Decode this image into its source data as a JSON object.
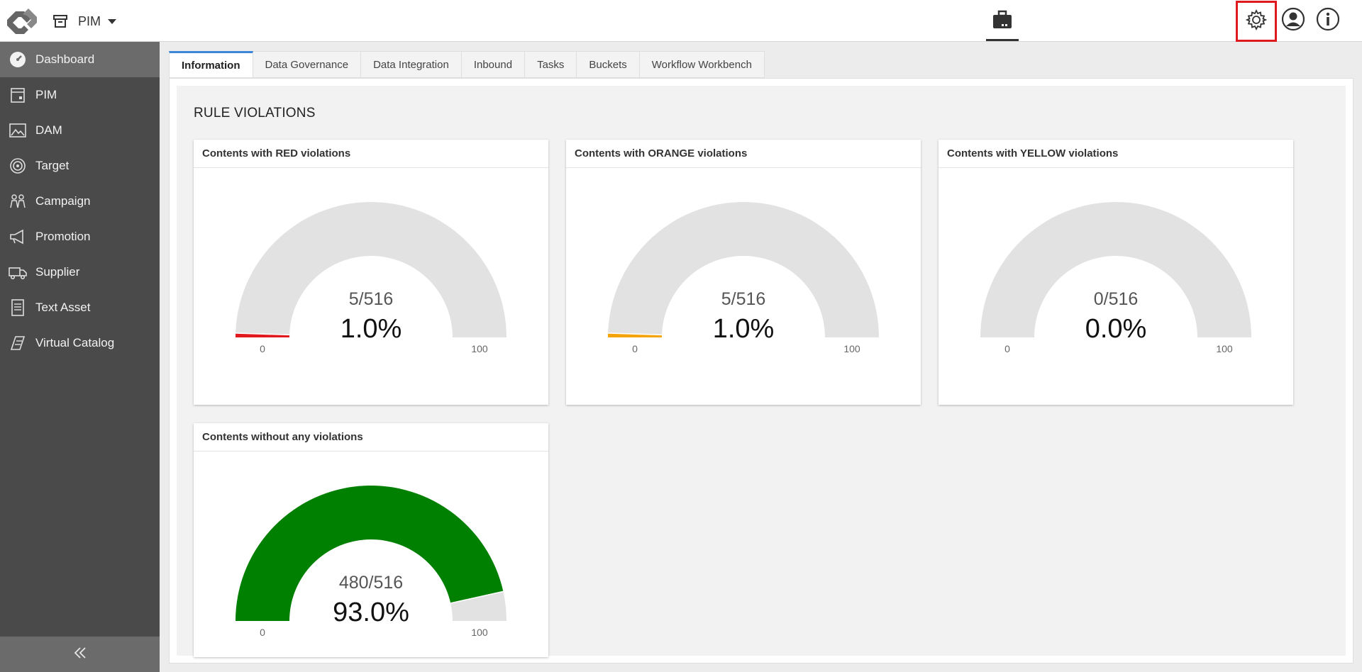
{
  "topbar": {
    "module_label": "PIM",
    "icons": [
      "logo-icon",
      "archive-box-icon",
      "caret-down-icon",
      "briefcase-icon",
      "gear-icon",
      "user-icon",
      "info-icon"
    ]
  },
  "sidebar": {
    "items": [
      {
        "label": "Dashboard",
        "icon": "dashboard-icon",
        "active": true
      },
      {
        "label": "PIM",
        "icon": "pim-icon"
      },
      {
        "label": "DAM",
        "icon": "image-icon"
      },
      {
        "label": "Target",
        "icon": "target-icon"
      },
      {
        "label": "Campaign",
        "icon": "campaign-icon"
      },
      {
        "label": "Promotion",
        "icon": "megaphone-icon"
      },
      {
        "label": "Supplier",
        "icon": "truck-icon"
      },
      {
        "label": "Text Asset",
        "icon": "document-icon"
      },
      {
        "label": "Virtual Catalog",
        "icon": "catalog-icon"
      }
    ],
    "collapse_icon": "double-chevron-left-icon"
  },
  "tabs": [
    {
      "label": "Information",
      "active": true
    },
    {
      "label": "Data Governance"
    },
    {
      "label": "Data Integration"
    },
    {
      "label": "Inbound"
    },
    {
      "label": "Tasks"
    },
    {
      "label": "Buckets"
    },
    {
      "label": "Workflow Workbench"
    }
  ],
  "section": {
    "title": "RULE VIOLATIONS"
  },
  "colors": {
    "red": "#e0191e",
    "orange": "#f5a30a",
    "yellow": "#f2d600",
    "green": "#008000",
    "gauge_track": "#e2e2e2",
    "highlight": "#e0191e"
  },
  "cards": [
    {
      "title": "Contents with RED violations",
      "ratio": "5/516",
      "percent": "1.0%",
      "value": 1.0,
      "color": "#e0191e",
      "min_label": "0",
      "max_label": "100"
    },
    {
      "title": "Contents with ORANGE violations",
      "ratio": "5/516",
      "percent": "1.0%",
      "value": 1.0,
      "color": "#f5a30a",
      "min_label": "0",
      "max_label": "100"
    },
    {
      "title": "Contents with YELLOW violations",
      "ratio": "0/516",
      "percent": "0.0%",
      "value": 0.0,
      "color": "#f2d600",
      "min_label": "0",
      "max_label": "100"
    },
    {
      "title": "Contents without any violations",
      "ratio": "480/516",
      "percent": "93.0%",
      "value": 93.0,
      "color": "#008000",
      "min_label": "0",
      "max_label": "100"
    }
  ]
}
